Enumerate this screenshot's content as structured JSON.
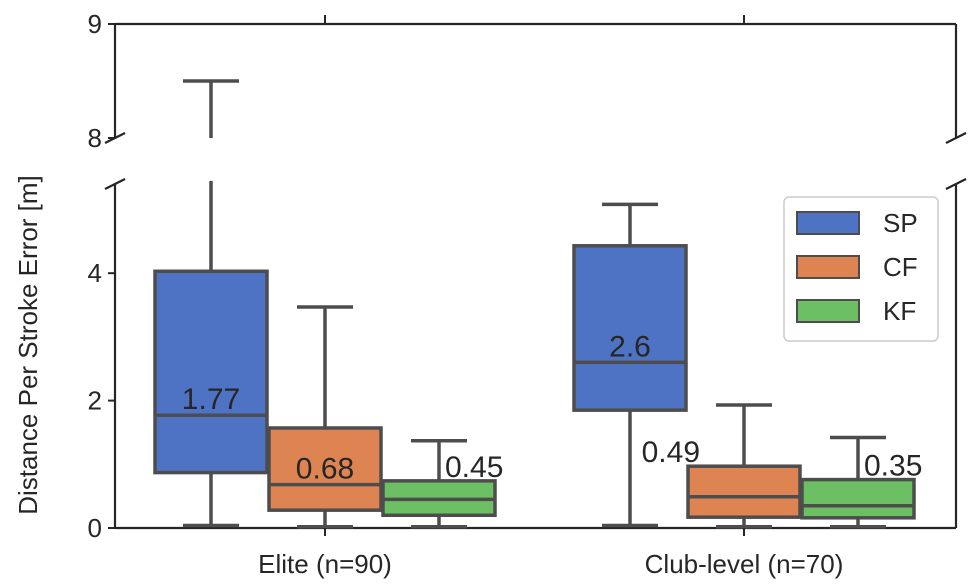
{
  "chart_data": {
    "type": "box",
    "ylabel": "Distance Per Stroke Error [m]",
    "categories": [
      "Elite (n=90)",
      "Club-level (n=70)"
    ],
    "broken_axis": {
      "upper_range": [
        8,
        9
      ],
      "lower_range": [
        0,
        5.4
      ]
    },
    "yticks": [
      {
        "value": 0,
        "label": "0"
      },
      {
        "value": 2,
        "label": "2"
      },
      {
        "value": 4,
        "label": "4"
      },
      {
        "value": 8,
        "label": "8"
      },
      {
        "value": 9,
        "label": "9"
      }
    ],
    "legend": {
      "position": "upper right"
    },
    "series": [
      {
        "name": "SP",
        "color": "#4f73c4",
        "boxes": [
          {
            "whisker_low": 0.04,
            "q1": 0.87,
            "median": 1.77,
            "q3": 4.03,
            "whisker_high": 5.45,
            "high_cap": 8.5,
            "median_label": "1.77",
            "label_pos": "on-median"
          },
          {
            "whisker_low": 0.04,
            "q1": 1.85,
            "median": 2.6,
            "q3": 4.43,
            "whisker_high": 5.08,
            "median_label": "2.6",
            "label_pos": "on-median"
          }
        ]
      },
      {
        "name": "CF",
        "color": "#dd8452",
        "boxes": [
          {
            "whisker_low": 0.02,
            "q1": 0.28,
            "median": 0.68,
            "q3": 1.57,
            "whisker_high": 3.47,
            "median_label": "0.68",
            "label_pos": "on-median"
          },
          {
            "whisker_low": 0.02,
            "q1": 0.17,
            "median": 0.49,
            "q3": 0.97,
            "whisker_high": 1.93,
            "median_label": "0.49",
            "label_pos": "left"
          }
        ]
      },
      {
        "name": "KF",
        "color": "#6cc063",
        "boxes": [
          {
            "whisker_low": 0.02,
            "q1": 0.2,
            "median": 0.45,
            "q3": 0.74,
            "whisker_high": 1.37,
            "median_label": "0.45",
            "label_pos": "right"
          },
          {
            "whisker_low": 0.02,
            "q1": 0.16,
            "median": 0.35,
            "q3": 0.76,
            "whisker_high": 1.42,
            "median_label": "0.35",
            "label_pos": "right"
          }
        ]
      }
    ]
  }
}
